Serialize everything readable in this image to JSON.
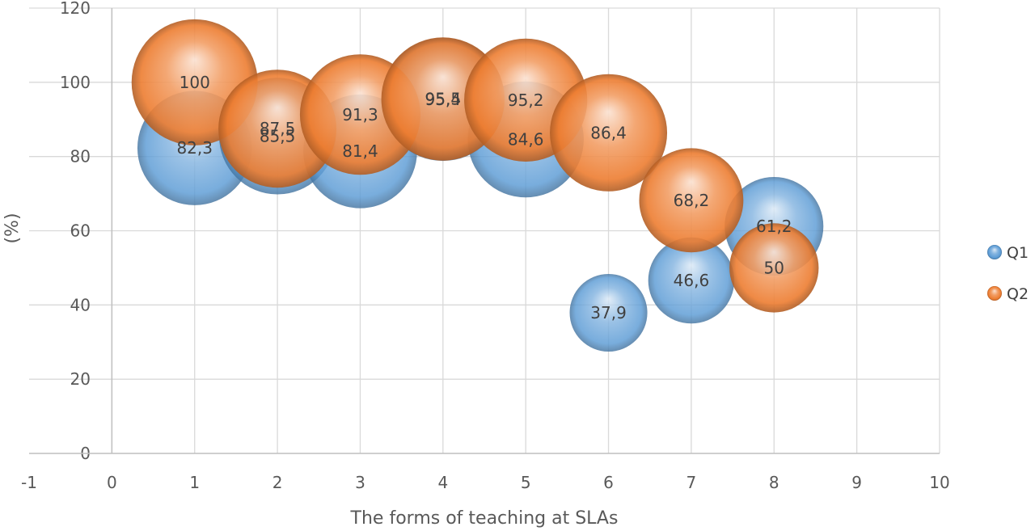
{
  "chart_data": {
    "type": "bubble",
    "xlabel": "The forms of teaching at SLAs",
    "ylabel": "(%)",
    "xlim": [
      -1,
      10
    ],
    "ylim": [
      0,
      120
    ],
    "x_ticks": [
      "-1",
      "0",
      "1",
      "2",
      "3",
      "4",
      "5",
      "6",
      "7",
      "8",
      "9",
      "10"
    ],
    "y_ticks": [
      "0",
      "20",
      "40",
      "60",
      "80",
      "100",
      "120"
    ],
    "grid": true,
    "legend_position": "right",
    "series": [
      {
        "name": "Q1",
        "color": "#5b9bd5",
        "points": [
          {
            "x": 1,
            "y": 82.3,
            "size": 82.3,
            "label": "82,3"
          },
          {
            "x": 2,
            "y": 85.5,
            "size": 85.5,
            "label": "85,5"
          },
          {
            "x": 3,
            "y": 81.4,
            "size": 81.4,
            "label": "81,4"
          },
          {
            "x": 4,
            "y": 95.4,
            "size": 95.4,
            "label": "95,4"
          },
          {
            "x": 5,
            "y": 84.6,
            "size": 84.6,
            "label": "84,6"
          },
          {
            "x": 6,
            "y": 37.9,
            "size": 37.9,
            "label": "37,9"
          },
          {
            "x": 7,
            "y": 46.6,
            "size": 46.6,
            "label": "46,6"
          },
          {
            "x": 8,
            "y": 61.2,
            "size": 61.2,
            "label": "61,2"
          }
        ]
      },
      {
        "name": "Q2",
        "color": "#ed7d31",
        "points": [
          {
            "x": 1,
            "y": 100,
            "size": 100,
            "label": "100"
          },
          {
            "x": 2,
            "y": 87.5,
            "size": 87.5,
            "label": "87,5"
          },
          {
            "x": 3,
            "y": 91.3,
            "size": 91.3,
            "label": "91,3"
          },
          {
            "x": 4,
            "y": 95.5,
            "size": 95.5,
            "label": "95,5"
          },
          {
            "x": 5,
            "y": 95.2,
            "size": 95.2,
            "label": "95,2"
          },
          {
            "x": 6,
            "y": 86.4,
            "size": 86.4,
            "label": "86,4"
          },
          {
            "x": 7,
            "y": 68.2,
            "size": 68.2,
            "label": "68,2"
          },
          {
            "x": 8,
            "y": 50,
            "size": 50,
            "label": "50"
          }
        ]
      }
    ]
  }
}
